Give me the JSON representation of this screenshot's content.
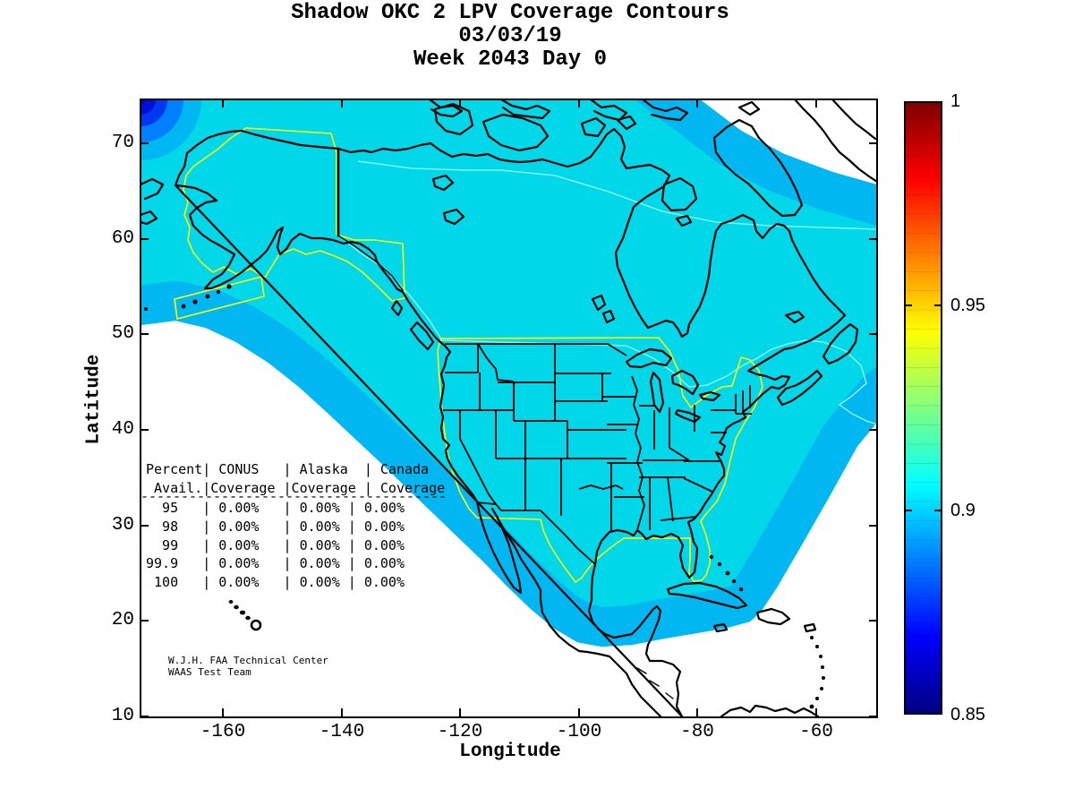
{
  "title": {
    "line1": "Shadow OKC 2 LPV Coverage Contours",
    "line2": "03/03/19",
    "line3": "Week 2043 Day 0"
  },
  "axes": {
    "xlabel": "Longitude",
    "ylabel": "Latitude",
    "x_ticks": [
      "-160",
      "-140",
      "-120",
      "-100",
      "-80",
      "-60"
    ],
    "y_ticks": [
      "70",
      "60",
      "50",
      "40",
      "30",
      "20",
      "10"
    ]
  },
  "colorbar": {
    "min": 0.85,
    "max": 1,
    "colormap": "jet",
    "ticks": [
      {
        "label": "1",
        "value": 1.0
      },
      {
        "label": "0.95",
        "value": 0.95
      },
      {
        "label": "0.9",
        "value": 0.9
      },
      {
        "label": "0.85",
        "value": 0.85
      }
    ]
  },
  "table": {
    "header_lines": [
      "Percent| CONUS   | Alaska  | Canada",
      " Avail.|Coverage |Coverage | Coverage"
    ],
    "separator": "--------------------------------------",
    "row_lines": [
      "  95   | 0.00%   | 0.00% | 0.00%",
      "  98   | 0.00%   | 0.00% | 0.00%",
      "  99   | 0.00%   | 0.00% | 0.00%",
      "99.9   | 0.00%   | 0.00% | 0.00%",
      " 100   | 0.00%   | 0.00% | 0.00%"
    ]
  },
  "attribution": {
    "line1": "W.J.H. FAA Technical Center",
    "line2": "WAAS Test Team"
  },
  "colors": {
    "coverage_core": "#00d7e8",
    "coverage_bands_outward": [
      "#00b7f2",
      "#0080ff",
      "#0037f0",
      "#0000b8"
    ],
    "service_volume_outline": "#ffff00",
    "inner_contour": "#7df2e0",
    "coastline": "#000000",
    "no_coverage": "#ffffff"
  },
  "chart_data": {
    "type": "heatmap",
    "subtype": "geographic-coverage-contour-map",
    "title": "Shadow OKC 2 LPV Coverage Contours",
    "subtitle_date": "03/03/19",
    "subtitle_week": "Week 2043 Day 0",
    "xlabel": "Longitude",
    "ylabel": "Latitude",
    "xlim": [
      -174,
      -50
    ],
    "ylim": [
      10,
      74.6
    ],
    "x_ticks": [
      -160,
      -140,
      -120,
      -100,
      -80,
      -60
    ],
    "y_ticks": [
      10,
      20,
      30,
      40,
      50,
      60,
      70
    ],
    "colorbar": {
      "label_values": [
        1,
        0.95,
        0.9,
        0.85
      ],
      "min": 0.85,
      "max": 1,
      "colormap": "jet",
      "position": "right"
    },
    "coverage_field": "Large contiguous region over North America at LPV coverage value ~0.9 (cyan), ringed by contour bands stepping down to 0.85 (dark blue) at the outer boundary; white (no data) beyond the boundary near Greenland, the Caribbean, Central America and the eastern Pacific",
    "availability_table": {
      "columns": [
        "Percent Avail.",
        "CONUS Coverage",
        "Alaska Coverage",
        "Canada Coverage"
      ],
      "rows": [
        [
          "95",
          "0.00%",
          "0.00%",
          "0.00%"
        ],
        [
          "98",
          "0.00%",
          "0.00%",
          "0.00%"
        ],
        [
          "99",
          "0.00%",
          "0.00%",
          "0.00%"
        ],
        [
          "99.9",
          "0.00%",
          "0.00%",
          "0.00%"
        ],
        [
          "100",
          "0.00%",
          "0.00%",
          "0.00%"
        ]
      ]
    },
    "annotations": [
      "W.J.H. FAA Technical Center",
      "WAAS Test Team"
    ],
    "legend": "none",
    "grid": false
  }
}
